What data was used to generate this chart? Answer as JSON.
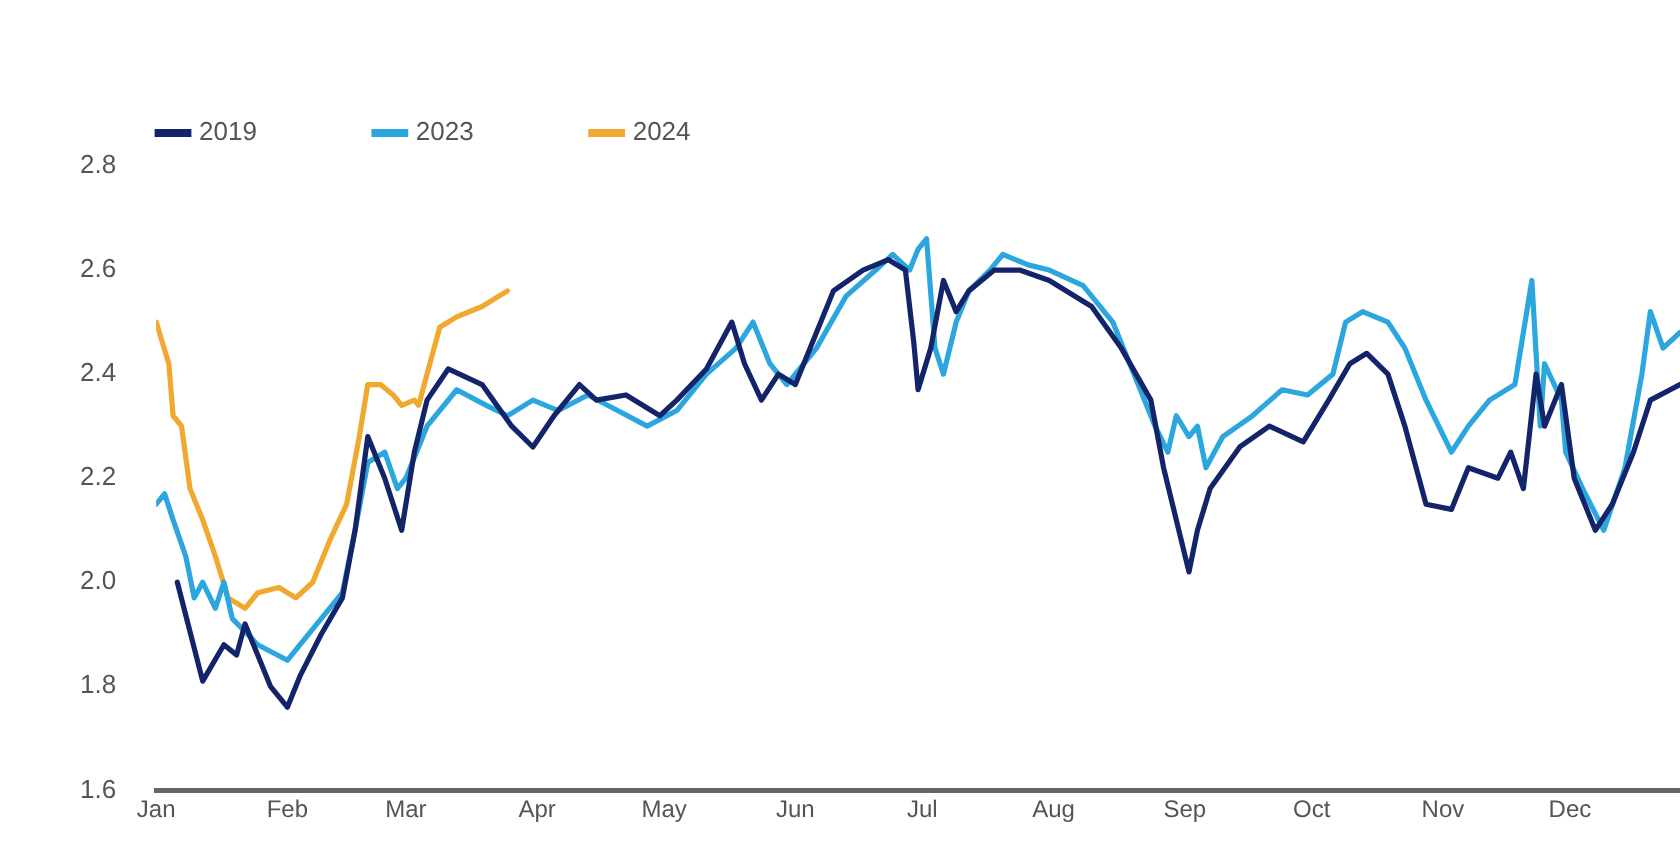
{
  "chart_data": {
    "type": "line",
    "legend": "top",
    "grid": false,
    "marker": "none",
    "line_style": "solid",
    "xlim": [
      "--01-01",
      "--12-27"
    ],
    "xticks": [
      {
        "value": "--01-01",
        "label": "Jan"
      },
      {
        "value": "--02-01",
        "label": "Feb"
      },
      {
        "value": "--03-01",
        "label": "Mar"
      },
      {
        "value": "--04-01",
        "label": "Apr"
      },
      {
        "value": "--05-01",
        "label": "May"
      },
      {
        "value": "--06-01",
        "label": "Jun"
      },
      {
        "value": "--07-01",
        "label": "Jul"
      },
      {
        "value": "--08-01",
        "label": "Aug"
      },
      {
        "value": "--09-01",
        "label": "Sep"
      },
      {
        "value": "--10-01",
        "label": "Oct"
      },
      {
        "value": "--11-01",
        "label": "Nov"
      },
      {
        "value": "--12-01",
        "label": "Dec"
      }
    ],
    "ylim": [
      1.6,
      2.8
    ],
    "yticks": [
      {
        "value": 1.6,
        "label": "1.6"
      },
      {
        "value": 1.8,
        "label": "1.8"
      },
      {
        "value": 2.0,
        "label": "2.0"
      },
      {
        "value": 2.2,
        "label": "2.2"
      },
      {
        "value": 2.4,
        "label": "2.4"
      },
      {
        "value": 2.6,
        "label": "2.6"
      },
      {
        "value": 2.8,
        "label": "2.8"
      }
    ],
    "series": [
      {
        "name": "2019",
        "color": "#14246b",
        "x": [
          "--01-06",
          "--01-12",
          "--01-17",
          "--01-20",
          "--01-22",
          "--01-24",
          "--01-28",
          "--02-01",
          "--02-04",
          "--02-09",
          "--02-14",
          "--02-17",
          "--02-20",
          "--02-24",
          "--02-28",
          "--03-03",
          "--03-06",
          "--03-11",
          "--03-19",
          "--03-26",
          "--03-31",
          "--04-05",
          "--04-11",
          "--04-15",
          "--04-22",
          "--04-30",
          "--05-04",
          "--05-11",
          "--05-17",
          "--05-20",
          "--05-24",
          "--05-28",
          "--06-01",
          "--06-06",
          "--06-10",
          "--06-17",
          "--06-23",
          "--06-27",
          "--06-29",
          "--06-30",
          "--07-03",
          "--07-06",
          "--07-09",
          "--07-12",
          "--07-18",
          "--07-24",
          "--07-31",
          "--08-10",
          "--08-17",
          "--08-24",
          "--08-27",
          "--08-30",
          "--09-02",
          "--09-04",
          "--09-07",
          "--09-14",
          "--09-21",
          "--09-29",
          "--10-05",
          "--10-10",
          "--10-14",
          "--10-19",
          "--10-23",
          "--10-28",
          "--11-03",
          "--11-07",
          "--11-14",
          "--11-17",
          "--11-20",
          "--11-23",
          "--11-25",
          "--11-29",
          "--12-02",
          "--12-07",
          "--12-11",
          "--12-16",
          "--12-20",
          "--12-27"
        ],
        "values": [
          2.0,
          1.81,
          1.88,
          1.86,
          1.92,
          1.88,
          1.8,
          1.76,
          1.82,
          1.9,
          1.97,
          2.1,
          2.28,
          2.2,
          2.1,
          2.25,
          2.35,
          2.41,
          2.38,
          2.3,
          2.26,
          2.32,
          2.38,
          2.35,
          2.36,
          2.32,
          2.35,
          2.41,
          2.5,
          2.42,
          2.35,
          2.4,
          2.38,
          2.48,
          2.56,
          2.6,
          2.62,
          2.6,
          2.46,
          2.37,
          2.45,
          2.58,
          2.52,
          2.56,
          2.6,
          2.6,
          2.58,
          2.53,
          2.45,
          2.35,
          2.22,
          2.12,
          2.02,
          2.1,
          2.18,
          2.26,
          2.3,
          2.27,
          2.35,
          2.42,
          2.44,
          2.4,
          2.3,
          2.15,
          2.14,
          2.22,
          2.2,
          2.25,
          2.18,
          2.4,
          2.3,
          2.38,
          2.2,
          2.1,
          2.15,
          2.25,
          2.35,
          2.38
        ]
      },
      {
        "name": "2023",
        "color": "#2ba6de",
        "x": [
          "--01-01",
          "--01-03",
          "--01-05",
          "--01-08",
          "--01-10",
          "--01-12",
          "--01-15",
          "--01-17",
          "--01-19",
          "--01-25",
          "--02-01",
          "--02-04",
          "--02-09",
          "--02-14",
          "--02-17",
          "--02-20",
          "--02-24",
          "--02-27",
          "--03-01",
          "--03-06",
          "--03-13",
          "--03-20",
          "--03-25",
          "--03-31",
          "--04-06",
          "--04-13",
          "--04-20",
          "--04-27",
          "--05-04",
          "--05-11",
          "--05-18",
          "--05-22",
          "--05-26",
          "--05-30",
          "--06-06",
          "--06-13",
          "--06-20",
          "--06-24",
          "--06-28",
          "--06-30",
          "--07-02",
          "--07-04",
          "--07-06",
          "--07-09",
          "--07-12",
          "--07-17",
          "--07-20",
          "--07-26",
          "--07-31",
          "--08-08",
          "--08-15",
          "--08-20",
          "--08-25",
          "--08-28",
          "--08-30",
          "--09-02",
          "--09-04",
          "--09-06",
          "--09-10",
          "--09-17",
          "--09-24",
          "--09-30",
          "--10-06",
          "--10-09",
          "--10-13",
          "--10-19",
          "--10-23",
          "--10-28",
          "--11-03",
          "--11-07",
          "--11-12",
          "--11-18",
          "--11-22",
          "--11-24",
          "--11-25",
          "--11-29",
          "--11-30",
          "--12-04",
          "--12-09",
          "--12-14",
          "--12-18",
          "--12-20",
          "--12-23",
          "--12-27"
        ],
        "values": [
          2.15,
          2.17,
          2.12,
          2.05,
          1.97,
          2.0,
          1.95,
          2.0,
          1.93,
          1.88,
          1.85,
          1.88,
          1.93,
          1.98,
          2.1,
          2.23,
          2.25,
          2.18,
          2.2,
          2.3,
          2.37,
          2.34,
          2.32,
          2.35,
          2.33,
          2.36,
          2.33,
          2.3,
          2.33,
          2.4,
          2.45,
          2.5,
          2.42,
          2.38,
          2.45,
          2.55,
          2.6,
          2.63,
          2.6,
          2.64,
          2.66,
          2.45,
          2.4,
          2.5,
          2.56,
          2.6,
          2.63,
          2.61,
          2.6,
          2.57,
          2.5,
          2.4,
          2.3,
          2.25,
          2.32,
          2.28,
          2.3,
          2.22,
          2.28,
          2.32,
          2.37,
          2.36,
          2.4,
          2.5,
          2.52,
          2.5,
          2.45,
          2.35,
          2.25,
          2.3,
          2.35,
          2.38,
          2.58,
          2.3,
          2.42,
          2.35,
          2.25,
          2.18,
          2.1,
          2.22,
          2.4,
          2.52,
          2.45,
          2.48
        ]
      },
      {
        "name": "2024",
        "color": "#f0a82e",
        "x": [
          "--01-01",
          "--01-04",
          "--01-05",
          "--01-07",
          "--01-09",
          "--01-12",
          "--01-15",
          "--01-18",
          "--01-22",
          "--01-25",
          "--01-30",
          "--02-03",
          "--02-07",
          "--02-11",
          "--02-15",
          "--02-18",
          "--02-20",
          "--02-23",
          "--02-26",
          "--02-28",
          "--03-03",
          "--03-04",
          "--03-09",
          "--03-13",
          "--03-19",
          "--03-25"
        ],
        "values": [
          2.5,
          2.42,
          2.32,
          2.3,
          2.18,
          2.12,
          2.05,
          1.97,
          1.95,
          1.98,
          1.99,
          1.97,
          2.0,
          2.08,
          2.15,
          2.28,
          2.38,
          2.38,
          2.36,
          2.34,
          2.35,
          2.34,
          2.49,
          2.51,
          2.53,
          2.56
        ]
      }
    ]
  }
}
